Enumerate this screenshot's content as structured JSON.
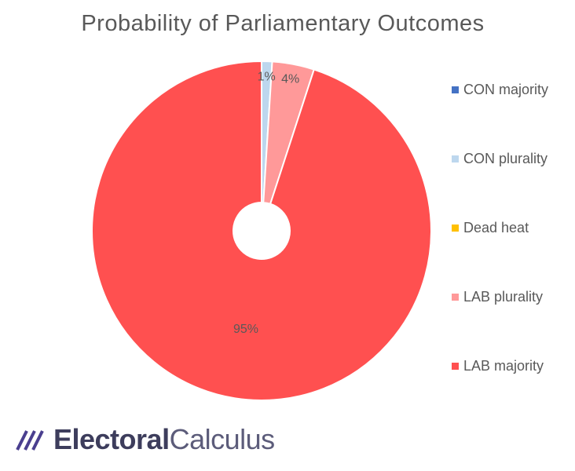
{
  "chart_data": {
    "type": "pie",
    "title": "Probability of Parliamentary Outcomes",
    "categories": [
      "CON majority",
      "CON plurality",
      "Dead heat",
      "LAB plurality",
      "LAB majority"
    ],
    "values": [
      0,
      1,
      0,
      4,
      95
    ],
    "data_labels": [
      "",
      "1%",
      "",
      "4%",
      "95%"
    ],
    "colors": [
      "#4472c4",
      "#bdd7ee",
      "#ffc000",
      "#ff9999",
      "#ff5050"
    ],
    "donut_hole": true,
    "legend_position": "right"
  },
  "logo": {
    "bold": "Electoral",
    "light": "Calculus"
  }
}
